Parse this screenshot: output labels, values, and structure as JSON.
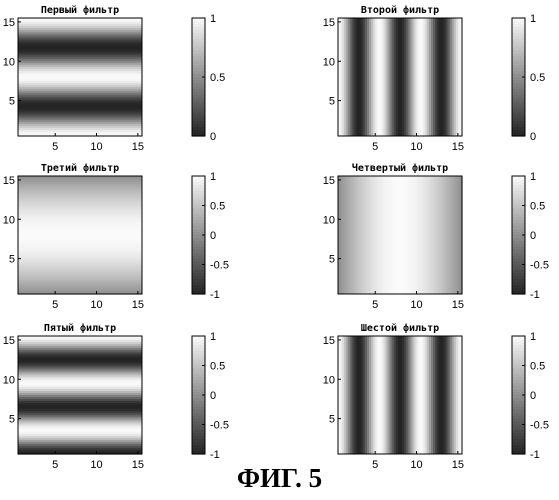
{
  "figure_caption": "ФИГ. 5",
  "chart_data": [
    {
      "type": "heatmap",
      "title": "Первый фильтр",
      "pattern": {
        "orientation": "horizontal",
        "function": "0.5+0.5*cos",
        "cycles": 2
      },
      "x_ticks": [
        5,
        10,
        15
      ],
      "y_ticks": [
        5,
        10,
        15
      ],
      "xlim": [
        0.5,
        15.5
      ],
      "ylim": [
        0.5,
        15.5
      ],
      "colorbar": {
        "range": [
          0,
          1
        ],
        "ticks": [
          {
            "value": 0,
            "label": "0"
          },
          {
            "value": 0.5,
            "label": "0.5"
          },
          {
            "value": 1,
            "label": "1"
          }
        ]
      }
    },
    {
      "type": "heatmap",
      "title": "Второй фильтр",
      "pattern": {
        "orientation": "vertical",
        "function": "0.5+0.5*cos",
        "cycles": 3
      },
      "x_ticks": [
        5,
        10,
        15
      ],
      "y_ticks": [
        5,
        10,
        15
      ],
      "xlim": [
        0.5,
        15.5
      ],
      "ylim": [
        0.5,
        15.5
      ],
      "colorbar": {
        "range": [
          0,
          1
        ],
        "ticks": [
          {
            "value": 0,
            "label": "0"
          },
          {
            "value": 0.5,
            "label": "0.5"
          },
          {
            "value": 1,
            "label": "1"
          }
        ]
      }
    },
    {
      "type": "heatmap",
      "title": "Третий фильтр",
      "pattern": {
        "orientation": "horizontal",
        "function": "sin",
        "cycles": 1
      },
      "x_ticks": [
        5,
        10,
        15
      ],
      "y_ticks": [
        5,
        10,
        15
      ],
      "xlim": [
        0.5,
        15.5
      ],
      "ylim": [
        0.5,
        15.5
      ],
      "colorbar": {
        "range": [
          -1,
          1
        ],
        "ticks": [
          {
            "value": -1,
            "label": "-1"
          },
          {
            "value": -0.5,
            "label": "-0.5"
          },
          {
            "value": 0,
            "label": "0"
          },
          {
            "value": 0.5,
            "label": "0.5"
          },
          {
            "value": 1,
            "label": "1"
          }
        ]
      }
    },
    {
      "type": "heatmap",
      "title": "Четвертый фильтр",
      "pattern": {
        "orientation": "vertical",
        "function": "sin",
        "cycles": 1
      },
      "x_ticks": [
        5,
        10,
        15
      ],
      "y_ticks": [
        5,
        10,
        15
      ],
      "xlim": [
        0.5,
        15.5
      ],
      "ylim": [
        0.5,
        15.5
      ],
      "colorbar": {
        "range": [
          -1,
          1
        ],
        "ticks": [
          {
            "value": -1,
            "label": "-1"
          },
          {
            "value": -0.5,
            "label": "-0.5"
          },
          {
            "value": 0,
            "label": "0"
          },
          {
            "value": 0.5,
            "label": "0.5"
          },
          {
            "value": 1,
            "label": "1"
          }
        ]
      }
    },
    {
      "type": "heatmap",
      "title": "Пятый фильтр",
      "pattern": {
        "orientation": "horizontal",
        "function": "cos",
        "cycles": 2.5
      },
      "x_ticks": [
        5,
        10,
        15
      ],
      "y_ticks": [
        5,
        10,
        15
      ],
      "xlim": [
        0.5,
        15.5
      ],
      "ylim": [
        0.5,
        15.5
      ],
      "colorbar": {
        "range": [
          -1,
          1
        ],
        "ticks": [
          {
            "value": -1,
            "label": "-1"
          },
          {
            "value": -0.5,
            "label": "-0.5"
          },
          {
            "value": 0,
            "label": "0"
          },
          {
            "value": 0.5,
            "label": "0.5"
          },
          {
            "value": 1,
            "label": "1"
          }
        ]
      }
    },
    {
      "type": "heatmap",
      "title": "Шестой фильтр",
      "pattern": {
        "orientation": "vertical",
        "function": "cos",
        "cycles": 3
      },
      "x_ticks": [
        5,
        10,
        15
      ],
      "y_ticks": [
        5,
        10,
        15
      ],
      "xlim": [
        0.5,
        15.5
      ],
      "ylim": [
        0.5,
        15.5
      ],
      "colorbar": {
        "range": [
          -1,
          1
        ],
        "ticks": [
          {
            "value": -1,
            "label": "-1"
          },
          {
            "value": -0.5,
            "label": "-0.5"
          },
          {
            "value": 0,
            "label": "0"
          },
          {
            "value": 0.5,
            "label": "0.5"
          },
          {
            "value": 1,
            "label": "1"
          }
        ]
      }
    }
  ]
}
